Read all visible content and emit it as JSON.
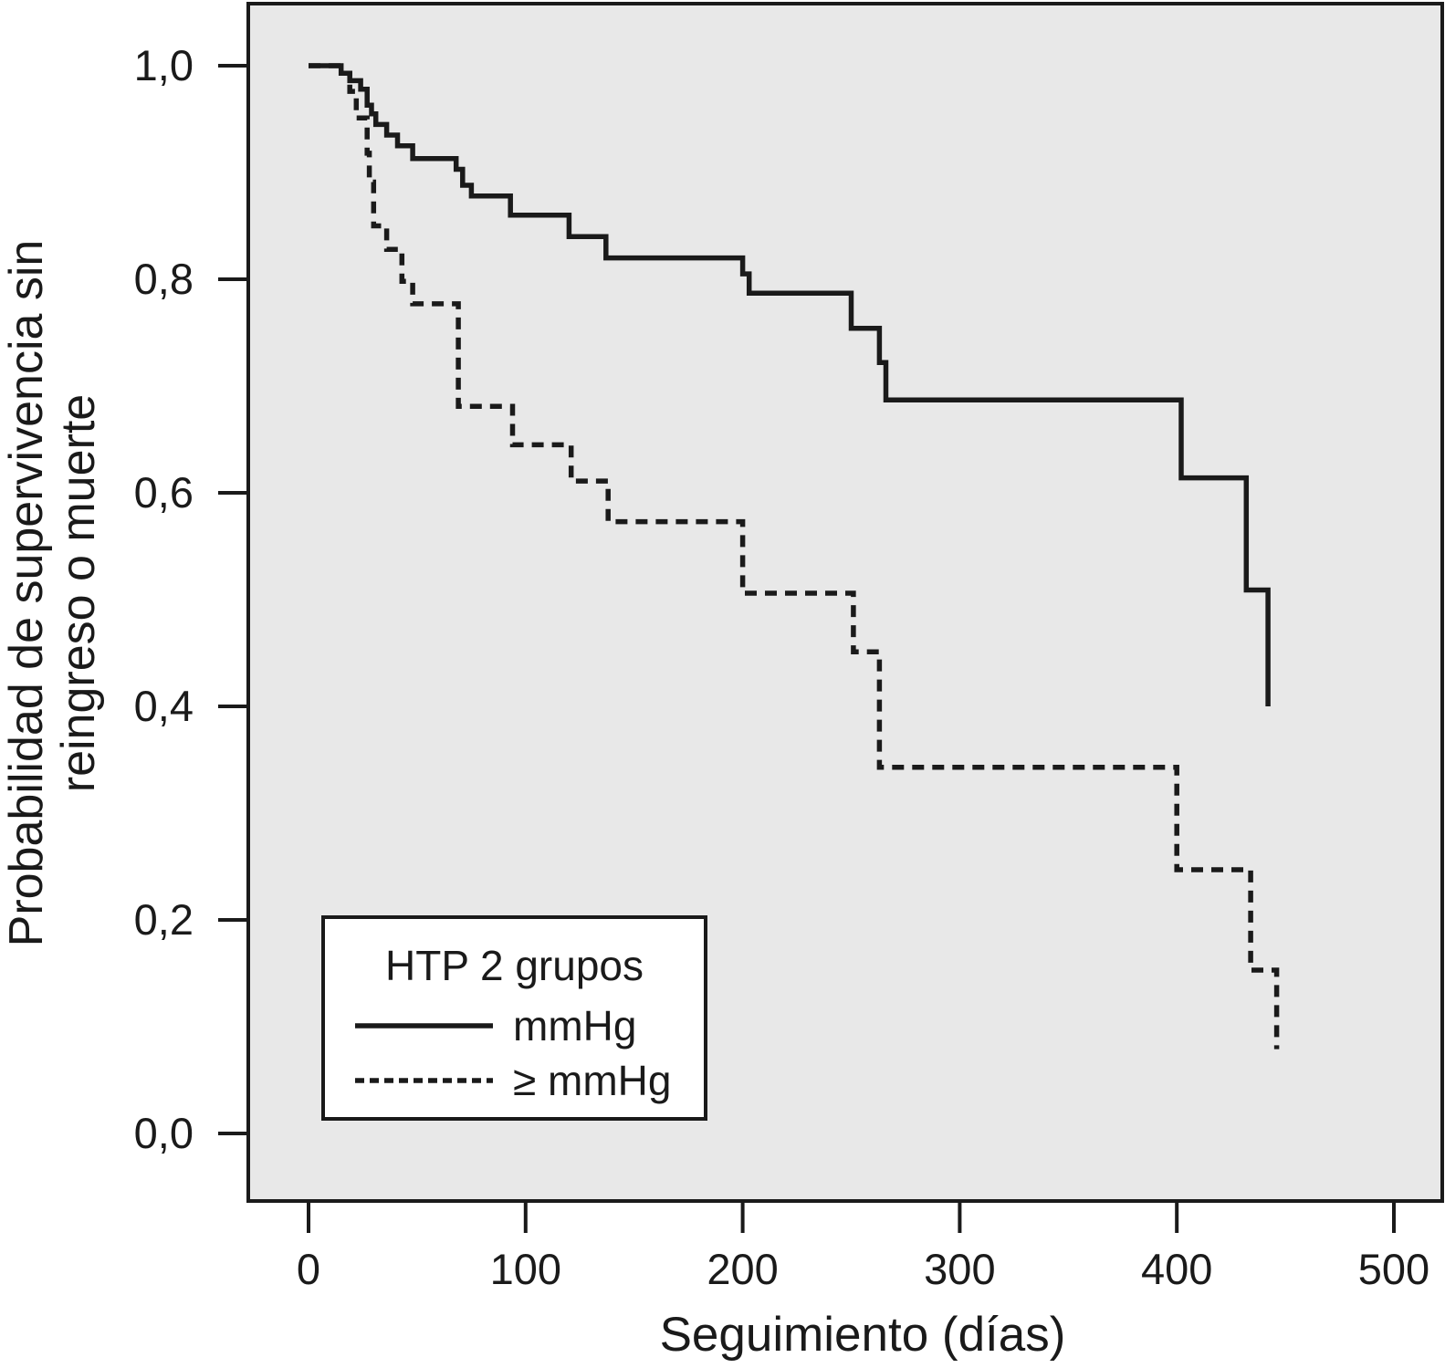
{
  "axes": {
    "x": {
      "title": "Seguimiento (días)",
      "ticks": [
        {
          "value": 0,
          "label": "0"
        },
        {
          "value": 100,
          "label": "100"
        },
        {
          "value": 200,
          "label": "200"
        },
        {
          "value": 300,
          "label": "300"
        },
        {
          "value": 400,
          "label": "400"
        },
        {
          "value": 500,
          "label": "500"
        }
      ]
    },
    "y": {
      "title": "Probabilidad de supervivencia sin reingreso o muerte",
      "title_lines": [
        "Probabilidad de supervivencia sin",
        "reingreso o muerte"
      ],
      "ticks": [
        {
          "value": 1.0,
          "label": "1,0"
        },
        {
          "value": 0.8,
          "label": "0,8"
        },
        {
          "value": 0.6,
          "label": "0,6"
        },
        {
          "value": 0.4,
          "label": "0,4"
        },
        {
          "value": 0.2,
          "label": "0,2"
        },
        {
          "value": 0.0,
          "label": "0,0"
        }
      ]
    }
  },
  "legend": {
    "title": "HTP 2 grupos",
    "entries": [
      {
        "label": "mmHg",
        "line_style": "solid"
      },
      {
        "label": "≥ mmHg",
        "line_style": "dashed"
      }
    ]
  },
  "colors": {
    "page_background": "#ffffff",
    "plot_background": "#e8e8e8",
    "line": "#1a1a1a"
  },
  "chart_data": {
    "type": "line",
    "variant": "kaplan-meier-step",
    "title": "",
    "xlabel": "Seguimiento (días)",
    "ylabel": "Probabilidad de supervivencia sin reingreso o muerte",
    "xlim": [
      0,
      523
    ],
    "ylim": [
      0,
      1.0
    ],
    "x_ticks": [
      0,
      100,
      200,
      300,
      400,
      500
    ],
    "y_ticks": [
      1.0,
      0.8,
      0.6,
      0.4,
      0.2,
      0.0
    ],
    "grid": false,
    "legend_position": "lower-left",
    "legend_title": "HTP 2 grupos",
    "series": [
      {
        "name": "mmHg",
        "style": "solid",
        "points": [
          [
            0,
            1.0
          ],
          [
            15,
            0.993
          ],
          [
            19,
            0.986
          ],
          [
            24,
            0.978
          ],
          [
            27,
            0.963
          ],
          [
            29,
            0.955
          ],
          [
            31,
            0.945
          ],
          [
            36,
            0.935
          ],
          [
            41,
            0.925
          ],
          [
            48,
            0.913
          ],
          [
            68,
            0.903
          ],
          [
            71,
            0.888
          ],
          [
            75,
            0.878
          ],
          [
            93,
            0.86
          ],
          [
            120,
            0.84
          ],
          [
            137,
            0.82
          ],
          [
            200,
            0.805
          ],
          [
            203,
            0.787
          ],
          [
            250,
            0.754
          ],
          [
            263,
            0.722
          ],
          [
            266,
            0.687
          ],
          [
            402,
            0.614
          ],
          [
            432,
            0.509
          ],
          [
            442,
            0.4
          ]
        ]
      },
      {
        "name": "≥ mmHg",
        "style": "dashed",
        "points": [
          [
            0,
            1.0
          ],
          [
            15,
            0.993
          ],
          [
            19,
            0.976
          ],
          [
            22,
            0.951
          ],
          [
            27,
            0.918
          ],
          [
            28,
            0.891
          ],
          [
            30,
            0.85
          ],
          [
            36,
            0.828
          ],
          [
            43,
            0.798
          ],
          [
            48,
            0.777
          ],
          [
            69,
            0.681
          ],
          [
            94,
            0.645
          ],
          [
            121,
            0.611
          ],
          [
            138,
            0.573
          ],
          [
            200,
            0.506
          ],
          [
            251,
            0.451
          ],
          [
            263,
            0.343
          ],
          [
            400,
            0.247
          ],
          [
            434,
            0.153
          ],
          [
            446,
            0.079
          ]
        ]
      }
    ]
  }
}
